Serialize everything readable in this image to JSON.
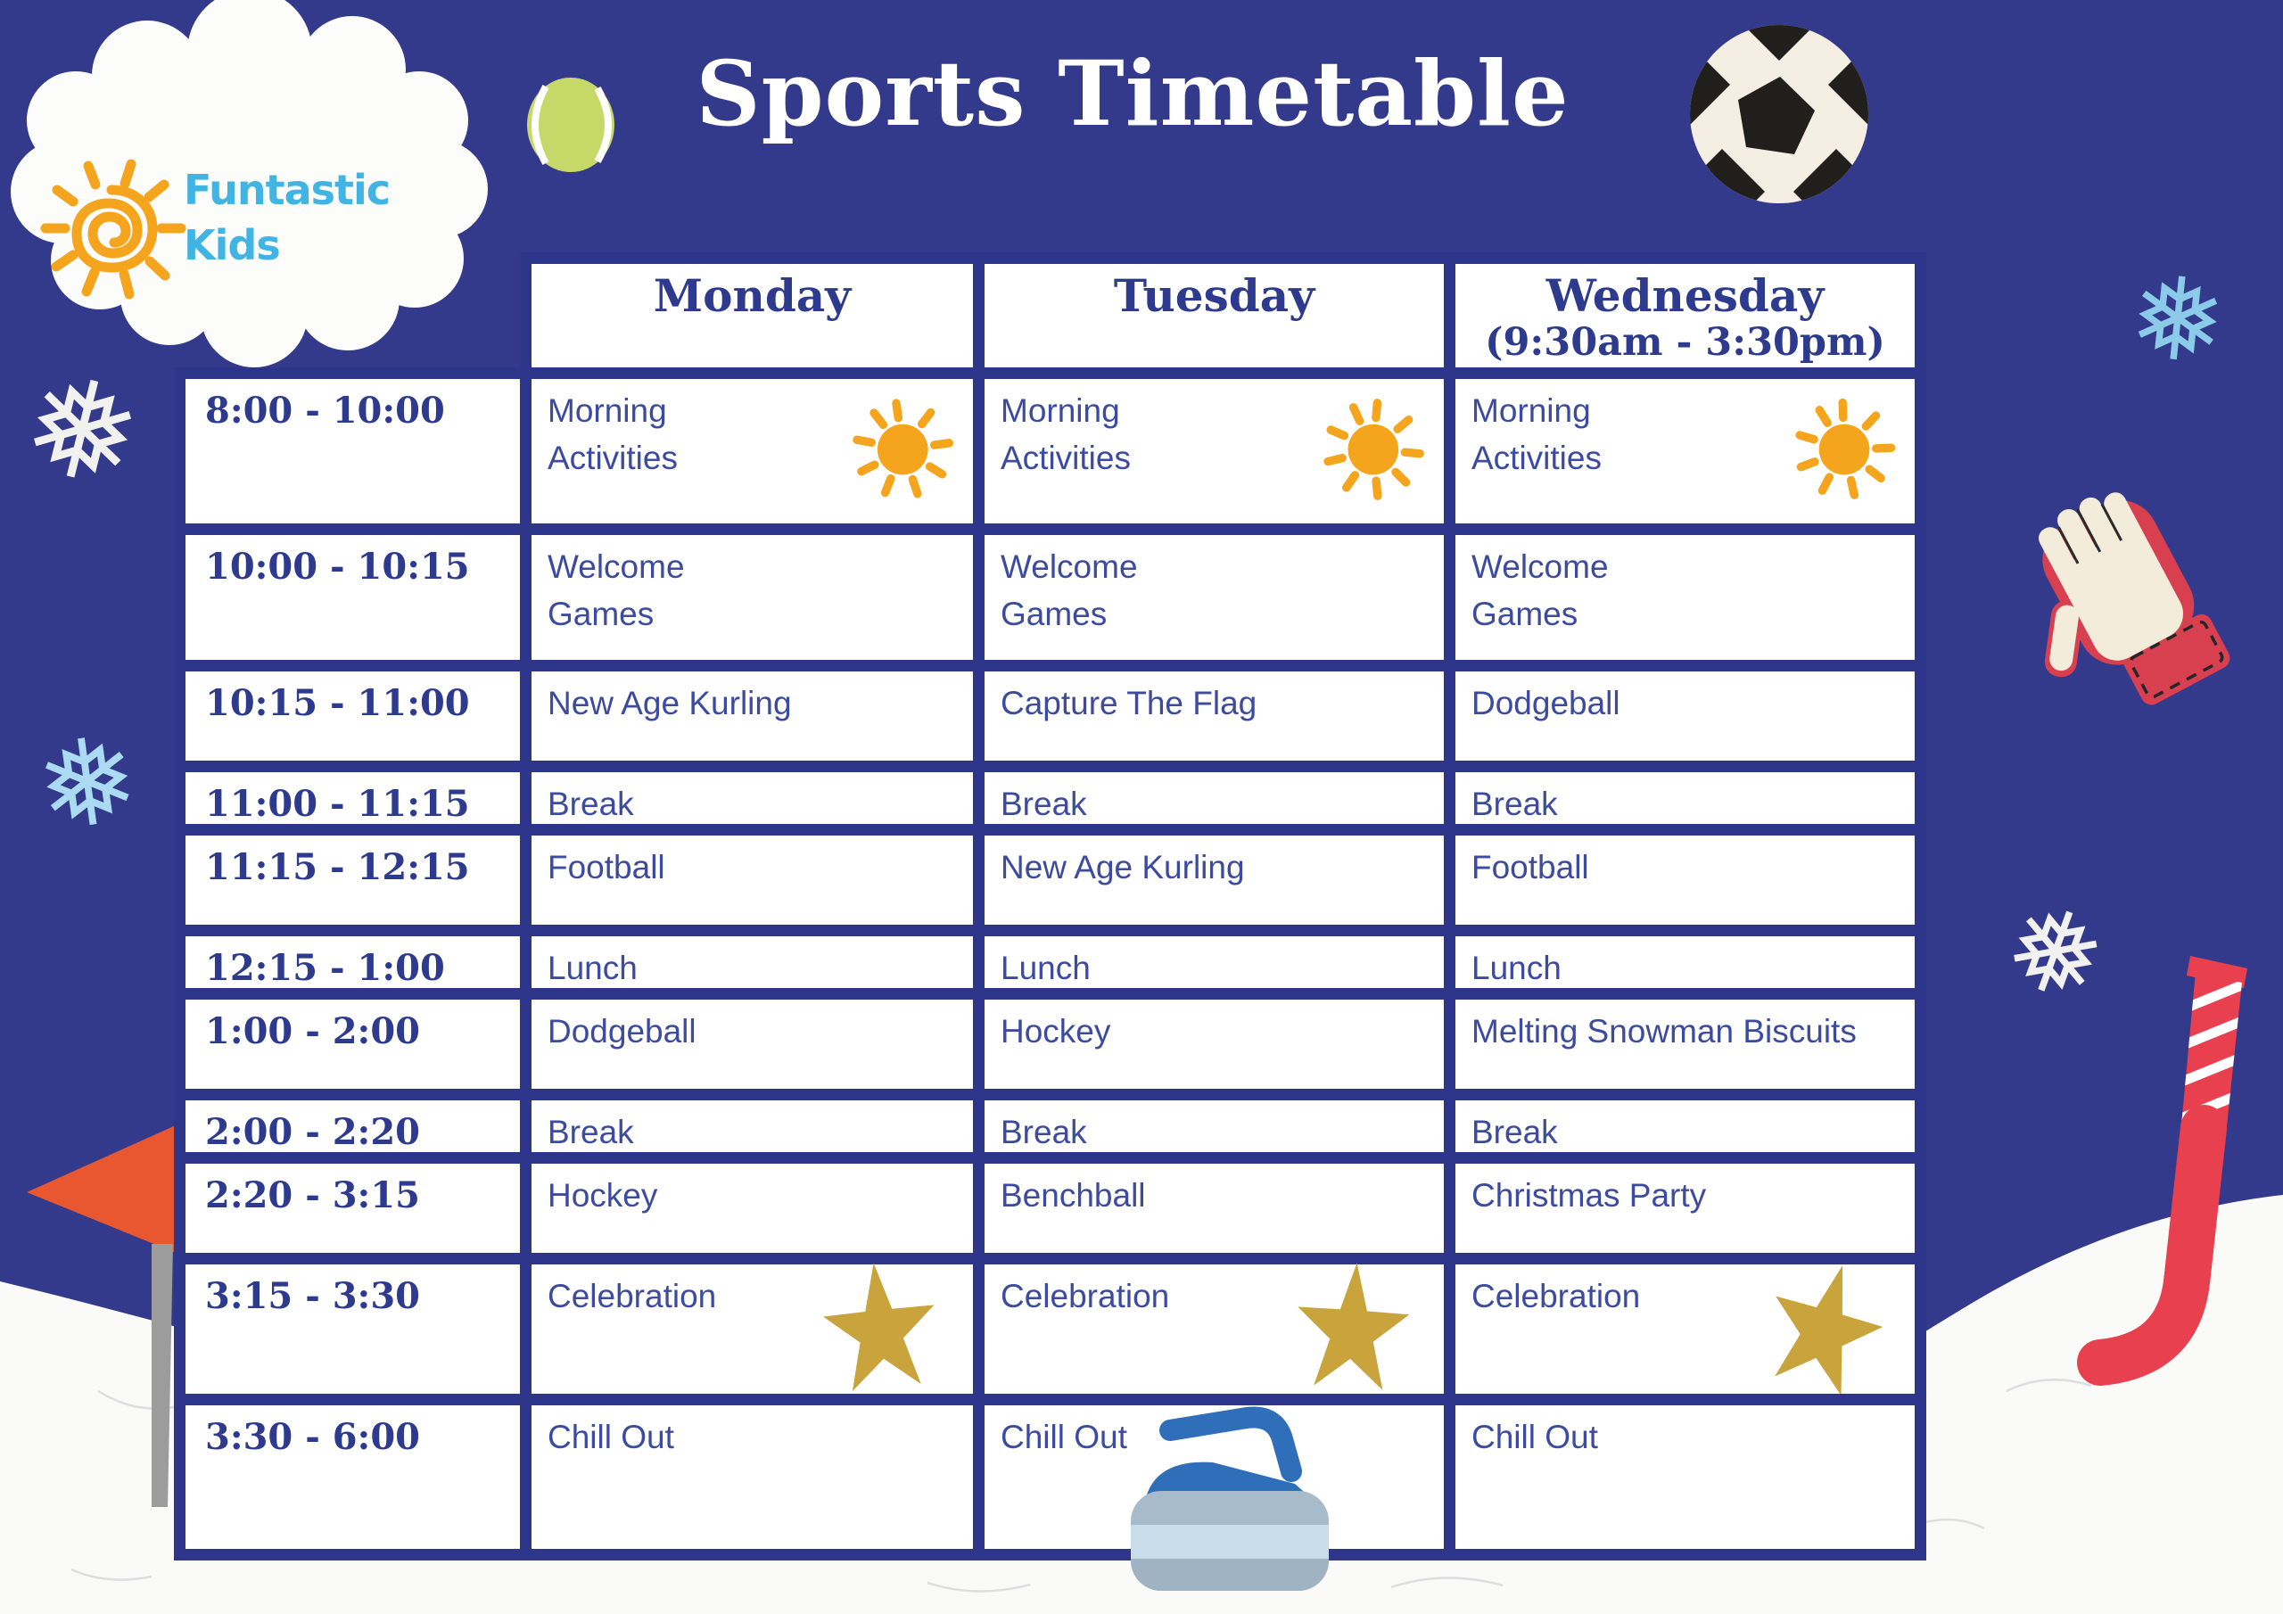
{
  "title": "Sports Timetable",
  "logo": {
    "line1": "Funtastic",
    "line2": "Kids"
  },
  "timetable": {
    "day_headers": [
      {
        "label": "Monday",
        "sub": ""
      },
      {
        "label": "Tuesday",
        "sub": ""
      },
      {
        "label": "Wednesday",
        "sub": "(9:30am - 3:30pm)"
      }
    ],
    "rows": [
      {
        "time": "8:00 - 10:00",
        "cells": [
          {
            "text": "Morning Activities",
            "icon": "sun-icon",
            "wrap": true
          },
          {
            "text": "Morning Activities",
            "icon": "sun-icon",
            "wrap": true
          },
          {
            "text": "Morning Activities",
            "icon": "sun-icon",
            "wrap": true
          }
        ]
      },
      {
        "time": "10:00 - 10:15",
        "cells": [
          {
            "text": "Welcome Games",
            "wrap": true
          },
          {
            "text": "Welcome Games",
            "wrap": true
          },
          {
            "text": "Welcome Games",
            "wrap": true
          }
        ]
      },
      {
        "time": "10:15 - 11:00",
        "cells": [
          {
            "text": "New Age Kurling"
          },
          {
            "text": "Capture The Flag"
          },
          {
            "text": "Dodgeball"
          }
        ]
      },
      {
        "time": "11:00 - 11:15",
        "cells": [
          {
            "text": "Break"
          },
          {
            "text": "Break"
          },
          {
            "text": "Break"
          }
        ]
      },
      {
        "time": "11:15 - 12:15",
        "cells": [
          {
            "text": "Football"
          },
          {
            "text": "New Age Kurling"
          },
          {
            "text": "Football"
          }
        ]
      },
      {
        "time": "12:15 - 1:00",
        "cells": [
          {
            "text": "Lunch"
          },
          {
            "text": "Lunch"
          },
          {
            "text": "Lunch"
          }
        ]
      },
      {
        "time": "1:00 - 2:00",
        "cells": [
          {
            "text": "Dodgeball"
          },
          {
            "text": "Hockey"
          },
          {
            "text": "Melting Snowman Biscuits"
          }
        ]
      },
      {
        "time": "2:00 - 2:20",
        "cells": [
          {
            "text": "Break"
          },
          {
            "text": "Break"
          },
          {
            "text": "Break"
          }
        ]
      },
      {
        "time": "2:20 - 3:15",
        "cells": [
          {
            "text": "Hockey"
          },
          {
            "text": "Benchball"
          },
          {
            "text": "Christmas Party"
          }
        ]
      },
      {
        "time": "3:15 - 3:30",
        "cells": [
          {
            "text": "Celebration",
            "icon": "star-icon"
          },
          {
            "text": "Celebration",
            "icon": "star-icon"
          },
          {
            "text": "Celebration",
            "icon": "star-icon"
          }
        ]
      },
      {
        "time": "3:30 - 6:00",
        "cells": [
          {
            "text": "Chill Out"
          },
          {
            "text": "Chill Out"
          },
          {
            "text": "Chill Out"
          }
        ]
      }
    ]
  },
  "glyphs": {
    "snowflake": "❅"
  },
  "decoration_icons": [
    "cloud-shape",
    "sun-icon",
    "tennis-ball-icon",
    "soccer-ball-icon",
    "snowflake-icon",
    "goalkeeper-glove-icon",
    "hockey-stick-icon",
    "corner-flag-icon",
    "curling-stone-icon"
  ],
  "colors": {
    "bg": "#333A8C",
    "grid": "#2D368B",
    "heading_ink": "#2D3A8E",
    "activity_ink": "#3C4B9F",
    "snow": "#FAFAF8",
    "logo_blue": "#41B4E4",
    "sun": "#F5A41E",
    "star": "#C9A33C",
    "tennis": "#C6D968",
    "soccer_dark": "#211F1C",
    "flag": "#E85730",
    "pole": "#9C9C9C",
    "glove_red": "#D8404F",
    "glove_cream": "#F3ECDA",
    "stick_red": "#E8404E",
    "curl_handle": "#2F6FB9",
    "curl_body": "#A7BBCA",
    "curl_stripe": "#C8DCEA",
    "flake_white": "#F1F1EF",
    "flake_blue": "#8CCAE9",
    "flake_pale": "#ABDAF3"
  }
}
